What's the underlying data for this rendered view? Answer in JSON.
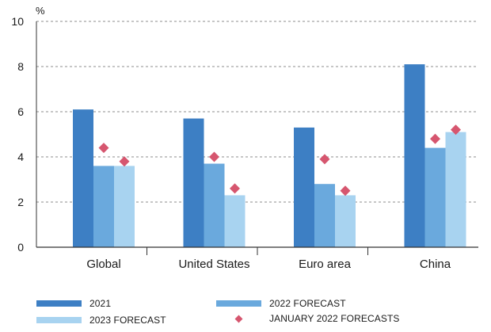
{
  "colors": {
    "series_2021": "#3d7fc4",
    "series_2022": "#6aa9dd",
    "series_2023": "#a8d3f0",
    "jan_forecast": "#d6566f",
    "axis": "#333333",
    "grid": "#8c8c8c"
  },
  "chart_data": {
    "type": "bar",
    "y_unit_label": "%",
    "ylim": [
      0,
      10
    ],
    "yticks": [
      0,
      2,
      4,
      6,
      8,
      10
    ],
    "grid": true,
    "grid_style": "dashed",
    "legend_position": "bottom",
    "categories": [
      "Global",
      "United States",
      "Euro area",
      "China"
    ],
    "series": [
      {
        "name": "2021",
        "values": [
          6.1,
          5.7,
          5.3,
          8.1
        ]
      },
      {
        "name": "2022 FORECAST",
        "values": [
          3.6,
          3.7,
          2.8,
          4.4
        ]
      },
      {
        "name": "2023 FORECAST",
        "values": [
          3.6,
          2.3,
          2.3,
          5.1
        ]
      }
    ],
    "markers": {
      "name": "JANUARY 2022 FORECASTS",
      "shape": "diamond",
      "values": [
        4.4,
        4.0,
        3.9,
        4.8
      ],
      "values_2023": [
        3.8,
        2.6,
        2.5,
        5.2
      ]
    }
  },
  "legend": {
    "items": [
      {
        "label": "2021"
      },
      {
        "label": "2022 FORECAST"
      },
      {
        "label": "2023 FORECAST"
      },
      {
        "label": "JANUARY 2022 FORECASTS"
      }
    ]
  }
}
